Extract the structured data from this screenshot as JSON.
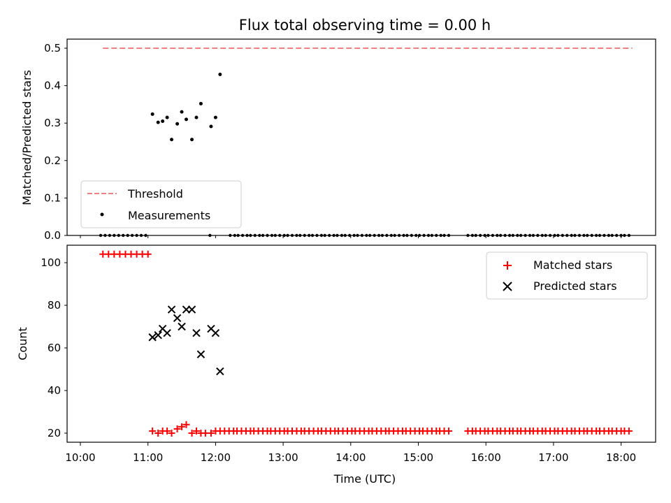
{
  "chart_data": [
    {
      "type": "scatter",
      "title": "Flux total observing time = 0.00 h",
      "xlabel": "",
      "ylabel": "Matched/Predicted stars",
      "xlim": [
        "10:00",
        "18:30"
      ],
      "ylim": [
        0,
        0.5
      ],
      "yticks": [
        "0.0",
        "0.1",
        "0.2",
        "0.3",
        "0.4",
        "0.5"
      ],
      "legend_position": "lower-left",
      "legend": [
        {
          "name": "Threshold",
          "marker": "dashed-line",
          "color": "#f08080"
        },
        {
          "name": "Measurements",
          "marker": "dot",
          "color": "#000000"
        }
      ],
      "threshold": {
        "name": "Threshold",
        "y": 0.5,
        "x_start": "10:20",
        "x_end": "18:10",
        "color": "#f08080"
      },
      "series": [
        {
          "name": "Measurements",
          "color": "#000000",
          "points": [
            [
              "11:04",
              0.324
            ],
            [
              "11:09",
              0.302
            ],
            [
              "11:13",
              0.305
            ],
            [
              "11:17",
              0.315
            ],
            [
              "11:21",
              0.256
            ],
            [
              "11:26",
              0.298
            ],
            [
              "11:30",
              0.33
            ],
            [
              "11:34",
              0.31
            ],
            [
              "11:39",
              0.256
            ],
            [
              "11:43",
              0.315
            ],
            [
              "11:47",
              0.352
            ],
            [
              "11:56",
              0.291
            ],
            [
              "12:00",
              0.315
            ],
            [
              "12:04",
              0.43
            ]
          ],
          "zero_segments": [
            {
              "start": "10:18",
              "end": "10:58",
              "count": 11
            },
            {
              "start": "11:55",
              "end": "11:55",
              "count": 1
            },
            {
              "start": "12:13",
              "end": "15:27",
              "count": 54
            },
            {
              "start": "15:44",
              "end": "17:08",
              "count": 24
            },
            {
              "start": "17:12",
              "end": "18:07",
              "count": 16
            }
          ]
        }
      ]
    },
    {
      "type": "scatter",
      "title": "",
      "xlabel": "Time (UTC)",
      "ylabel": "Count",
      "xlim": [
        "10:00",
        "18:30"
      ],
      "ylim": [
        15,
        108
      ],
      "xticks": [
        "10:00",
        "11:00",
        "12:00",
        "13:00",
        "14:00",
        "15:00",
        "16:00",
        "17:00",
        "18:00"
      ],
      "yticks": [
        "20",
        "40",
        "60",
        "80",
        "100"
      ],
      "legend_position": "top-right",
      "series": [
        {
          "name": "Matched stars",
          "marker": "+",
          "color": "#ff0000",
          "points": [
            [
              "10:20",
              104
            ],
            [
              "10:25",
              104
            ],
            [
              "10:30",
              104
            ],
            [
              "10:35",
              104
            ],
            [
              "10:40",
              104
            ],
            [
              "10:45",
              104
            ],
            [
              "10:50",
              104
            ],
            [
              "10:55",
              104
            ],
            [
              "11:00",
              104
            ],
            [
              "11:04",
              21
            ],
            [
              "11:09",
              20
            ],
            [
              "11:13",
              21
            ],
            [
              "11:17",
              21
            ],
            [
              "11:21",
              20
            ],
            [
              "11:26",
              22
            ],
            [
              "11:30",
              23
            ],
            [
              "11:34",
              24
            ],
            [
              "11:39",
              20
            ],
            [
              "11:43",
              21
            ],
            [
              "11:47",
              20
            ],
            [
              "11:51",
              20
            ],
            [
              "11:56",
              20
            ],
            [
              "12:00",
              21
            ],
            [
              "12:04",
              21
            ]
          ],
          "flat_segments": [
            {
              "start": "12:08",
              "end": "15:27",
              "count": 54,
              "y": 21
            },
            {
              "start": "15:44",
              "end": "17:08",
              "count": 24,
              "y": 21
            },
            {
              "start": "17:12",
              "end": "18:07",
              "count": 16,
              "y": 21
            }
          ]
        },
        {
          "name": "Predicted stars",
          "marker": "x",
          "color": "#000000",
          "points": [
            [
              "11:04",
              65
            ],
            [
              "11:09",
              66
            ],
            [
              "11:13",
              69
            ],
            [
              "11:17",
              67
            ],
            [
              "11:21",
              78
            ],
            [
              "11:26",
              74
            ],
            [
              "11:30",
              70
            ],
            [
              "11:34",
              78
            ],
            [
              "11:39",
              78
            ],
            [
              "11:43",
              67
            ],
            [
              "11:47",
              57
            ],
            [
              "11:56",
              69
            ],
            [
              "12:00",
              67
            ],
            [
              "12:04",
              49
            ]
          ]
        }
      ]
    }
  ]
}
